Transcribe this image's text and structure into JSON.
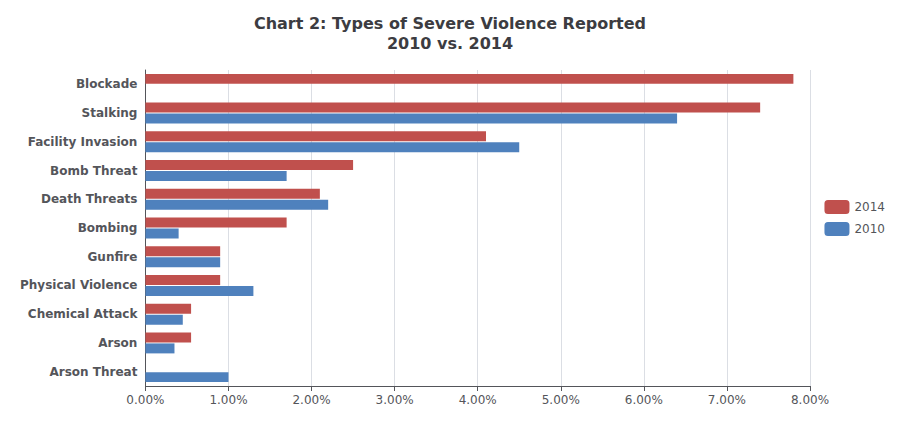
{
  "chart_data": {
    "type": "bar",
    "orientation": "horizontal",
    "title": "Chart 2: Types of Severe Violence Reported\n2010 vs. 2014",
    "categories": [
      "Blockade",
      "Stalking",
      "Facility Invasion",
      "Bomb Threat",
      "Death Threats",
      "Bombing",
      "Gunfire",
      "Physical Violence",
      "Chemical Attack",
      "Arson",
      "Arson Threat"
    ],
    "series": [
      {
        "name": "2014",
        "color": "#C0504D",
        "values": [
          0.078,
          0.074,
          0.041,
          0.025,
          0.021,
          0.017,
          0.009,
          0.009,
          0.0055,
          0.0055,
          0.0
        ]
      },
      {
        "name": "2010",
        "color": "#4F81BD",
        "values": [
          0.0,
          0.064,
          0.045,
          0.017,
          0.022,
          0.004,
          0.009,
          0.013,
          0.0045,
          0.0035,
          0.01
        ]
      }
    ],
    "xlim": [
      0,
      0.08
    ],
    "xticks": [
      {
        "value": 0.0,
        "label": "0.00%"
      },
      {
        "value": 0.01,
        "label": "1.00%"
      },
      {
        "value": 0.02,
        "label": "2.00%"
      },
      {
        "value": 0.03,
        "label": "3.00%"
      },
      {
        "value": 0.04,
        "label": "4.00%"
      },
      {
        "value": 0.05,
        "label": "5.00%"
      },
      {
        "value": 0.06,
        "label": "6.00%"
      },
      {
        "value": 0.07,
        "label": "7.00%"
      },
      {
        "value": 0.08,
        "label": "8.00%"
      }
    ],
    "grid": true,
    "legend": "right"
  }
}
